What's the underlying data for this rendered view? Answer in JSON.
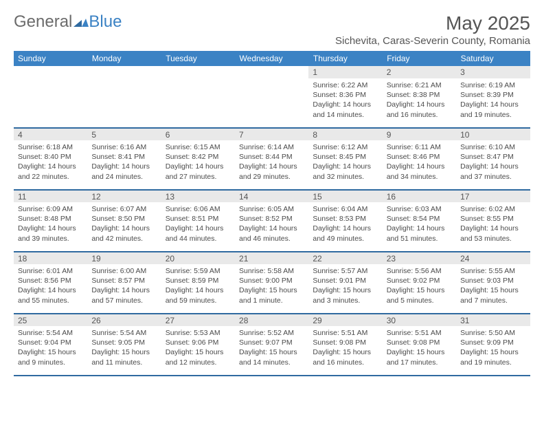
{
  "brand": {
    "part1": "General",
    "part2": "Blue"
  },
  "title": "May 2025",
  "location": "Sichevita, Caras-Severin County, Romania",
  "colors": {
    "header_bg": "#3b82c4",
    "header_text": "#ffffff",
    "daynum_bg": "#e9e9e9",
    "rule": "#2f6aa0",
    "text": "#4a4a4a",
    "title_text": "#555555",
    "logo_gray": "#6b6b6b",
    "logo_blue": "#3b82c4"
  },
  "fonts": {
    "body_pt": 10.5,
    "daynum_pt": 12,
    "header_pt": 12,
    "title_pt": 28,
    "location_pt": 15
  },
  "weekdays": [
    "Sunday",
    "Monday",
    "Tuesday",
    "Wednesday",
    "Thursday",
    "Friday",
    "Saturday"
  ],
  "weeks": [
    [
      null,
      null,
      null,
      null,
      {
        "n": "1",
        "sr": "Sunrise: 6:22 AM",
        "ss": "Sunset: 8:36 PM",
        "d1": "Daylight: 14 hours",
        "d2": "and 14 minutes."
      },
      {
        "n": "2",
        "sr": "Sunrise: 6:21 AM",
        "ss": "Sunset: 8:38 PM",
        "d1": "Daylight: 14 hours",
        "d2": "and 16 minutes."
      },
      {
        "n": "3",
        "sr": "Sunrise: 6:19 AM",
        "ss": "Sunset: 8:39 PM",
        "d1": "Daylight: 14 hours",
        "d2": "and 19 minutes."
      }
    ],
    [
      {
        "n": "4",
        "sr": "Sunrise: 6:18 AM",
        "ss": "Sunset: 8:40 PM",
        "d1": "Daylight: 14 hours",
        "d2": "and 22 minutes."
      },
      {
        "n": "5",
        "sr": "Sunrise: 6:16 AM",
        "ss": "Sunset: 8:41 PM",
        "d1": "Daylight: 14 hours",
        "d2": "and 24 minutes."
      },
      {
        "n": "6",
        "sr": "Sunrise: 6:15 AM",
        "ss": "Sunset: 8:42 PM",
        "d1": "Daylight: 14 hours",
        "d2": "and 27 minutes."
      },
      {
        "n": "7",
        "sr": "Sunrise: 6:14 AM",
        "ss": "Sunset: 8:44 PM",
        "d1": "Daylight: 14 hours",
        "d2": "and 29 minutes."
      },
      {
        "n": "8",
        "sr": "Sunrise: 6:12 AM",
        "ss": "Sunset: 8:45 PM",
        "d1": "Daylight: 14 hours",
        "d2": "and 32 minutes."
      },
      {
        "n": "9",
        "sr": "Sunrise: 6:11 AM",
        "ss": "Sunset: 8:46 PM",
        "d1": "Daylight: 14 hours",
        "d2": "and 34 minutes."
      },
      {
        "n": "10",
        "sr": "Sunrise: 6:10 AM",
        "ss": "Sunset: 8:47 PM",
        "d1": "Daylight: 14 hours",
        "d2": "and 37 minutes."
      }
    ],
    [
      {
        "n": "11",
        "sr": "Sunrise: 6:09 AM",
        "ss": "Sunset: 8:48 PM",
        "d1": "Daylight: 14 hours",
        "d2": "and 39 minutes."
      },
      {
        "n": "12",
        "sr": "Sunrise: 6:07 AM",
        "ss": "Sunset: 8:50 PM",
        "d1": "Daylight: 14 hours",
        "d2": "and 42 minutes."
      },
      {
        "n": "13",
        "sr": "Sunrise: 6:06 AM",
        "ss": "Sunset: 8:51 PM",
        "d1": "Daylight: 14 hours",
        "d2": "and 44 minutes."
      },
      {
        "n": "14",
        "sr": "Sunrise: 6:05 AM",
        "ss": "Sunset: 8:52 PM",
        "d1": "Daylight: 14 hours",
        "d2": "and 46 minutes."
      },
      {
        "n": "15",
        "sr": "Sunrise: 6:04 AM",
        "ss": "Sunset: 8:53 PM",
        "d1": "Daylight: 14 hours",
        "d2": "and 49 minutes."
      },
      {
        "n": "16",
        "sr": "Sunrise: 6:03 AM",
        "ss": "Sunset: 8:54 PM",
        "d1": "Daylight: 14 hours",
        "d2": "and 51 minutes."
      },
      {
        "n": "17",
        "sr": "Sunrise: 6:02 AM",
        "ss": "Sunset: 8:55 PM",
        "d1": "Daylight: 14 hours",
        "d2": "and 53 minutes."
      }
    ],
    [
      {
        "n": "18",
        "sr": "Sunrise: 6:01 AM",
        "ss": "Sunset: 8:56 PM",
        "d1": "Daylight: 14 hours",
        "d2": "and 55 minutes."
      },
      {
        "n": "19",
        "sr": "Sunrise: 6:00 AM",
        "ss": "Sunset: 8:57 PM",
        "d1": "Daylight: 14 hours",
        "d2": "and 57 minutes."
      },
      {
        "n": "20",
        "sr": "Sunrise: 5:59 AM",
        "ss": "Sunset: 8:59 PM",
        "d1": "Daylight: 14 hours",
        "d2": "and 59 minutes."
      },
      {
        "n": "21",
        "sr": "Sunrise: 5:58 AM",
        "ss": "Sunset: 9:00 PM",
        "d1": "Daylight: 15 hours",
        "d2": "and 1 minute."
      },
      {
        "n": "22",
        "sr": "Sunrise: 5:57 AM",
        "ss": "Sunset: 9:01 PM",
        "d1": "Daylight: 15 hours",
        "d2": "and 3 minutes."
      },
      {
        "n": "23",
        "sr": "Sunrise: 5:56 AM",
        "ss": "Sunset: 9:02 PM",
        "d1": "Daylight: 15 hours",
        "d2": "and 5 minutes."
      },
      {
        "n": "24",
        "sr": "Sunrise: 5:55 AM",
        "ss": "Sunset: 9:03 PM",
        "d1": "Daylight: 15 hours",
        "d2": "and 7 minutes."
      }
    ],
    [
      {
        "n": "25",
        "sr": "Sunrise: 5:54 AM",
        "ss": "Sunset: 9:04 PM",
        "d1": "Daylight: 15 hours",
        "d2": "and 9 minutes."
      },
      {
        "n": "26",
        "sr": "Sunrise: 5:54 AM",
        "ss": "Sunset: 9:05 PM",
        "d1": "Daylight: 15 hours",
        "d2": "and 11 minutes."
      },
      {
        "n": "27",
        "sr": "Sunrise: 5:53 AM",
        "ss": "Sunset: 9:06 PM",
        "d1": "Daylight: 15 hours",
        "d2": "and 12 minutes."
      },
      {
        "n": "28",
        "sr": "Sunrise: 5:52 AM",
        "ss": "Sunset: 9:07 PM",
        "d1": "Daylight: 15 hours",
        "d2": "and 14 minutes."
      },
      {
        "n": "29",
        "sr": "Sunrise: 5:51 AM",
        "ss": "Sunset: 9:08 PM",
        "d1": "Daylight: 15 hours",
        "d2": "and 16 minutes."
      },
      {
        "n": "30",
        "sr": "Sunrise: 5:51 AM",
        "ss": "Sunset: 9:08 PM",
        "d1": "Daylight: 15 hours",
        "d2": "and 17 minutes."
      },
      {
        "n": "31",
        "sr": "Sunrise: 5:50 AM",
        "ss": "Sunset: 9:09 PM",
        "d1": "Daylight: 15 hours",
        "d2": "and 19 minutes."
      }
    ]
  ]
}
